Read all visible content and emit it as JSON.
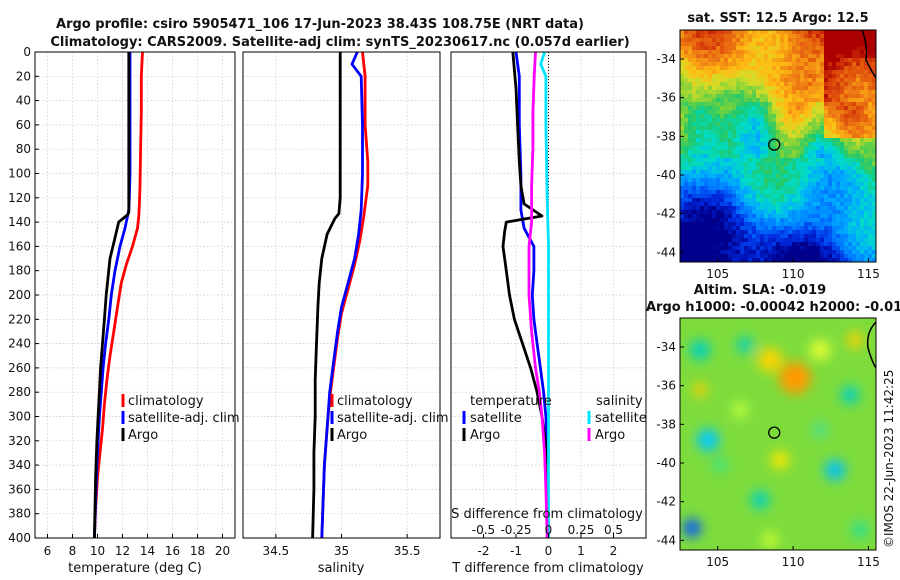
{
  "header": {
    "title_line1": "Argo profile: csiro 5905471_106 17-Jun-2023 38.43S 108.75E (NRT data)",
    "title_line2": "Climatology: CARS2009. Satellite-adj clim: synTS_20230617.nc (0.057d earlier)"
  },
  "colors": {
    "climatology": "#ff0000",
    "satellite": "#0000ff",
    "argo": "#000000",
    "argo_diff_salinity": "#ff00ff",
    "satellite_diff_salinity": "#00e5ff"
  },
  "chart_data": [
    {
      "id": "temperature",
      "type": "line",
      "xlabel": "temperature (deg C)",
      "ylabel": "",
      "xlim": [
        5,
        21
      ],
      "ylim": [
        400,
        0
      ],
      "xticks": [
        6,
        8,
        10,
        12,
        14,
        16,
        18,
        20
      ],
      "yticks": [
        0,
        20,
        40,
        60,
        80,
        100,
        120,
        140,
        160,
        180,
        200,
        220,
        240,
        260,
        280,
        300,
        320,
        340,
        360,
        380,
        400
      ],
      "grid": true,
      "legend": [
        "climatology",
        "satellite-adj. clim",
        "Argo"
      ],
      "series": [
        {
          "name": "climatology",
          "color": "#ff0000",
          "x": [
            13.6,
            13.5,
            13.5,
            13.45,
            13.4,
            13.35,
            13.3,
            13.2,
            12.8,
            12.3,
            11.9,
            11.6,
            11.3,
            11.0,
            10.75,
            10.55,
            10.4,
            10.2,
            10.0,
            9.85,
            9.75
          ],
          "y": [
            0,
            20,
            50,
            80,
            110,
            125,
            135,
            145,
            160,
            175,
            190,
            210,
            230,
            250,
            270,
            290,
            310,
            330,
            350,
            375,
            400
          ]
        },
        {
          "name": "satellite-adj. clim",
          "color": "#0000ff",
          "x": [
            12.6,
            12.6,
            12.6,
            12.6,
            12.55,
            12.5,
            12.2,
            11.8,
            11.4,
            11.1,
            10.9,
            10.65,
            10.45,
            10.3,
            10.15,
            10.05,
            9.95,
            9.85,
            9.75
          ],
          "y": [
            0,
            20,
            60,
            100,
            118,
            130,
            145,
            160,
            180,
            200,
            220,
            240,
            260,
            280,
            300,
            320,
            340,
            370,
            400
          ]
        },
        {
          "name": "Argo",
          "color": "#000000",
          "x": [
            12.5,
            12.5,
            12.5,
            12.5,
            12.5,
            12.4,
            11.7,
            11.35,
            11.0,
            10.85,
            10.7,
            10.55,
            10.4,
            10.25,
            10.15,
            10.05,
            9.95,
            9.85,
            9.75
          ],
          "y": [
            0,
            30,
            80,
            120,
            132,
            134,
            140,
            155,
            170,
            185,
            200,
            220,
            240,
            260,
            280,
            300,
            320,
            350,
            400
          ]
        }
      ]
    },
    {
      "id": "salinity",
      "type": "line",
      "xlabel": "salinity",
      "xlim": [
        34.25,
        35.75
      ],
      "ylim": [
        400,
        0
      ],
      "xticks": [
        34.5,
        35,
        35.5
      ],
      "grid": true,
      "legend": [
        "climatology",
        "satellite-adj. clim",
        "Argo"
      ],
      "series": [
        {
          "name": "climatology",
          "color": "#ff0000",
          "x": [
            35.16,
            35.18,
            35.18,
            35.2,
            35.2,
            35.17,
            35.14,
            35.1,
            35.05,
            35.0,
            34.97,
            34.94,
            34.91,
            34.89,
            34.87,
            34.86,
            34.85
          ],
          "y": [
            0,
            20,
            60,
            90,
            110,
            135,
            155,
            175,
            195,
            215,
            235,
            260,
            285,
            310,
            340,
            370,
            400
          ]
        },
        {
          "name": "satellite-adj. clim",
          "color": "#0000ff",
          "x": [
            35.12,
            35.08,
            35.15,
            35.16,
            35.16,
            35.15,
            35.13,
            35.1,
            35.05,
            35.0,
            34.97,
            34.94,
            34.91,
            34.89,
            34.87,
            34.86,
            34.85
          ],
          "y": [
            0,
            10,
            20,
            60,
            100,
            130,
            150,
            170,
            190,
            210,
            230,
            255,
            280,
            310,
            340,
            370,
            400
          ]
        },
        {
          "name": "Argo",
          "color": "#000000",
          "x": [
            34.99,
            34.99,
            34.99,
            34.99,
            34.98,
            34.95,
            34.89,
            34.85,
            34.83,
            34.82,
            34.81,
            34.8,
            34.8,
            34.79,
            34.79,
            34.78
          ],
          "y": [
            0,
            40,
            90,
            120,
            133,
            137,
            150,
            170,
            190,
            210,
            240,
            270,
            300,
            330,
            360,
            400
          ]
        }
      ]
    },
    {
      "id": "difference",
      "type": "line",
      "xlabel": "T difference from climatology",
      "xlabel_top": "S difference from climatology",
      "xlim": [
        -3,
        3
      ],
      "ylim": [
        400,
        0
      ],
      "xticks": [
        -2,
        -1,
        0,
        1,
        2
      ],
      "xticks_top_values": [
        -0.5,
        -0.25,
        0,
        0.25,
        0.5
      ],
      "xticks_top_labels": [
        "-0.5",
        "-0.25",
        "0",
        "0.25",
        "0.5"
      ],
      "grid": true,
      "legend_groups": [
        {
          "title": "temperature",
          "entries": [
            "satellite",
            "Argo"
          ]
        },
        {
          "title": "salinity",
          "entries": [
            "satellite",
            "Argo"
          ]
        }
      ],
      "series": [
        {
          "name": "temperature satellite",
          "color": "#0000ff",
          "x": [
            -1.0,
            -0.9,
            -0.9,
            -0.85,
            -0.85,
            -0.75,
            -0.45,
            -0.45,
            -0.5,
            -0.45,
            -0.35,
            -0.25,
            -0.15,
            -0.08,
            -0.03,
            0.0
          ],
          "y": [
            0,
            20,
            60,
            100,
            130,
            145,
            160,
            180,
            200,
            220,
            240,
            260,
            280,
            300,
            340,
            400
          ]
        },
        {
          "name": "temperature Argo",
          "color": "#000000",
          "x": [
            -1.1,
            -1.0,
            -0.95,
            -0.9,
            -0.85,
            -0.75,
            -0.2,
            -1.3,
            -1.35,
            -1.4,
            -1.3,
            -1.2,
            -1.05,
            -0.8,
            -0.55,
            -0.35,
            -0.2,
            -0.1,
            -0.05,
            0.0
          ],
          "y": [
            0,
            30,
            60,
            90,
            110,
            125,
            135,
            140,
            148,
            160,
            180,
            200,
            220,
            240,
            260,
            280,
            300,
            320,
            350,
            400
          ]
        },
        {
          "name": "salinity satellite",
          "color": "#00e5ff",
          "x": [
            -0.03,
            -0.06,
            -0.02,
            -0.02,
            -0.01,
            0.0,
            0.0,
            0.0,
            0.0,
            0.0
          ],
          "y": [
            0,
            10,
            20,
            60,
            120,
            160,
            200,
            260,
            330,
            400
          ]
        },
        {
          "name": "salinity Argo",
          "color": "#ff00ff",
          "x": [
            -0.1,
            -0.11,
            -0.12,
            -0.12,
            -0.13,
            -0.13,
            -0.13,
            -0.14,
            -0.15,
            -0.15,
            -0.15,
            -0.13,
            -0.1,
            -0.07,
            -0.05,
            -0.03,
            -0.02,
            -0.01
          ],
          "y": [
            0,
            20,
            50,
            80,
            110,
            130,
            140,
            150,
            160,
            180,
            200,
            230,
            260,
            280,
            300,
            330,
            360,
            400
          ]
        }
      ]
    },
    {
      "id": "sst_map",
      "type": "heatmap",
      "title": "sat. SST: 12.5 Argo: 12.5",
      "xticks": [
        105,
        110,
        115
      ],
      "yticks": [
        -34,
        -36,
        -38,
        -40,
        -42,
        -44
      ],
      "xlim": [
        102.5,
        115.5
      ],
      "ylim": [
        -44.5,
        -32.5
      ],
      "marker": {
        "lon": 108.75,
        "lat": -38.43
      }
    },
    {
      "id": "sla_map",
      "type": "heatmap",
      "title_line1": "Altim. SLA: -0.019",
      "title_line2": "Argo h1000: -0.00042 h2000: -0.01",
      "xticks": [
        105,
        110,
        115
      ],
      "yticks": [
        -34,
        -36,
        -38,
        -40,
        -42,
        -44
      ],
      "xlim": [
        102.5,
        115.5
      ],
      "ylim": [
        -44.5,
        -32.5
      ],
      "marker": {
        "lon": 108.75,
        "lat": -38.43
      }
    }
  ],
  "legends": {
    "temperature": [
      {
        "label": "climatology",
        "color": "#ff0000"
      },
      {
        "label": "satellite-adj. clim",
        "color": "#0000ff"
      },
      {
        "label": "Argo",
        "color": "#000000"
      }
    ],
    "salinity": [
      {
        "label": "climatology",
        "color": "#ff0000"
      },
      {
        "label": "satellite-adj. clim",
        "color": "#0000ff"
      },
      {
        "label": "Argo",
        "color": "#000000"
      }
    ],
    "difference_temperature_title": "temperature",
    "difference_temperature": [
      {
        "label": "satellite",
        "color": "#0000ff"
      },
      {
        "label": "Argo",
        "color": "#000000"
      }
    ],
    "difference_salinity_title": "salinity",
    "difference_salinity": [
      {
        "label": "satellite",
        "color": "#00e5ff"
      },
      {
        "label": "Argo",
        "color": "#ff00ff"
      }
    ]
  },
  "footer": {
    "stamp": "©IMOS 22-Jun-2023 11:42:25"
  }
}
